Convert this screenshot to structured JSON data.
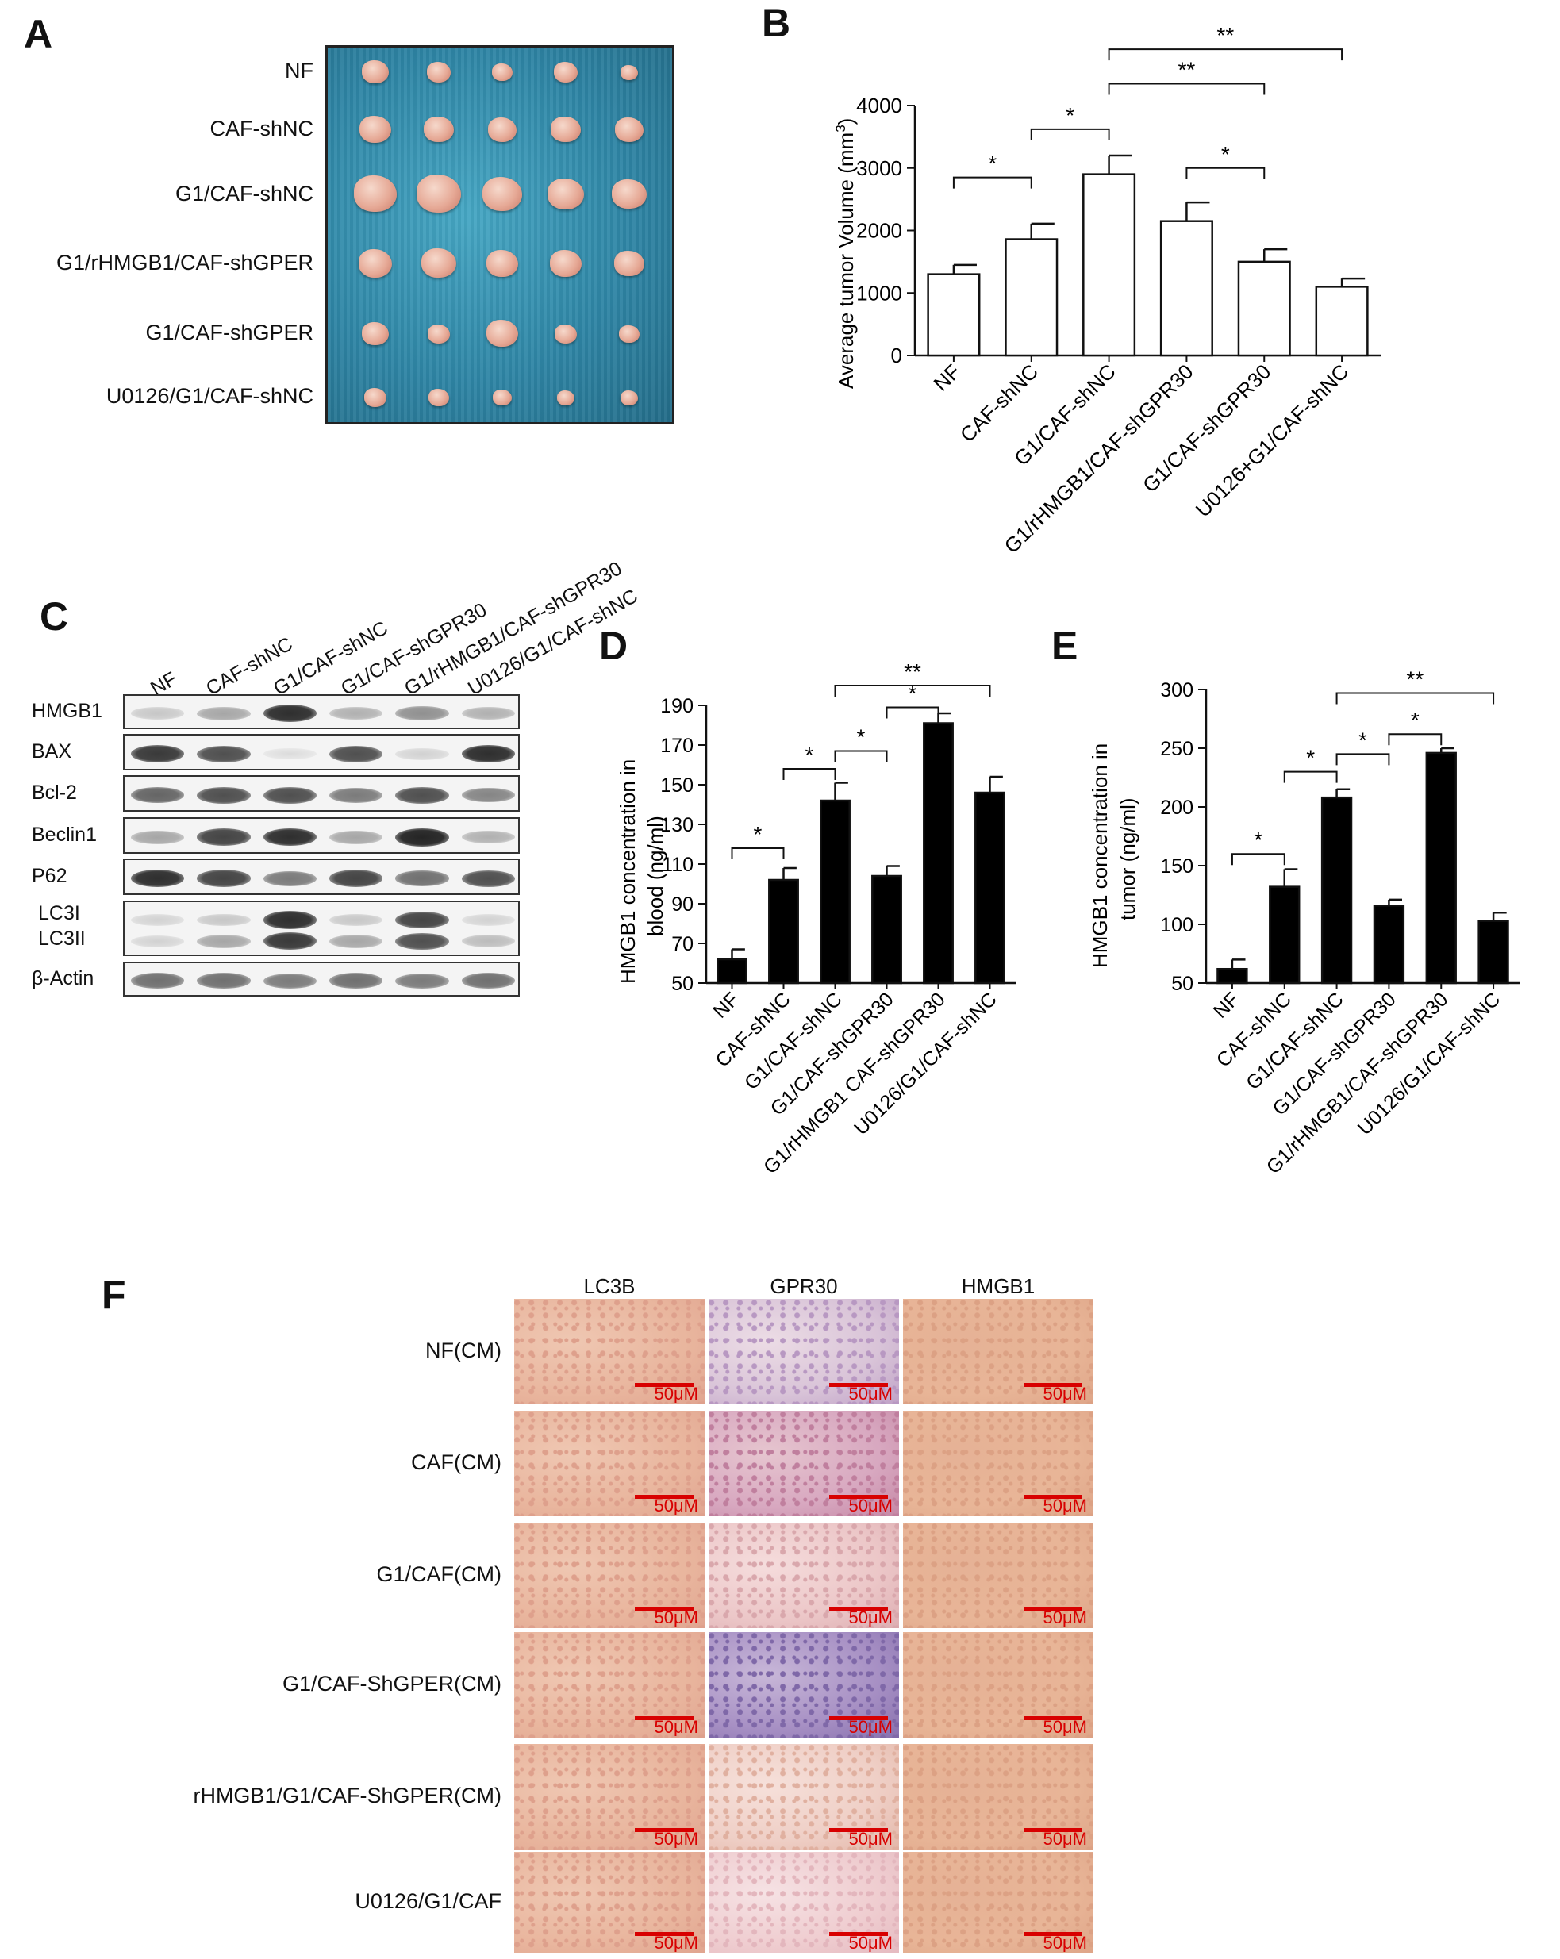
{
  "panels": {
    "A": {
      "letter": "A",
      "rows": [
        "NF",
        "CAF-shNC",
        "G1/CAF-shNC",
        "G1/rHMGB1/CAF-shGPER",
        "G1/CAF-shGPER",
        "U0126/G1/CAF-shNC"
      ]
    },
    "B": {
      "letter": "B"
    },
    "C": {
      "letter": "C",
      "lanes": [
        "NF",
        "CAF-shNC",
        "G1/CAF-shNC",
        "G1/CAF-shGPR30",
        "G1/rHMGB1/CAF-shGPR30",
        "U0126/G1/CAF-shNC"
      ],
      "proteins": [
        "HMGB1",
        "BAX",
        "Bcl-2",
        "Beclin1",
        "P62",
        "LC3I",
        "LC3II",
        "β-Actin"
      ],
      "band_intensity": {
        "HMGB1": [
          0.15,
          0.3,
          0.85,
          0.25,
          0.4,
          0.25
        ],
        "BAX": [
          0.8,
          0.7,
          0.05,
          0.7,
          0.1,
          0.85
        ],
        "Bcl-2": [
          0.6,
          0.7,
          0.7,
          0.5,
          0.7,
          0.45
        ],
        "Beclin1": [
          0.3,
          0.75,
          0.85,
          0.3,
          0.9,
          0.25
        ],
        "P62": [
          0.85,
          0.75,
          0.5,
          0.75,
          0.55,
          0.7
        ],
        "LC3I": [
          0.1,
          0.15,
          0.85,
          0.15,
          0.75,
          0.1
        ],
        "LC3II": [
          0.1,
          0.3,
          0.8,
          0.3,
          0.7,
          0.2
        ],
        "β-Actin": [
          0.55,
          0.55,
          0.5,
          0.55,
          0.5,
          0.55
        ]
      }
    },
    "D": {
      "letter": "D"
    },
    "E": {
      "letter": "E"
    },
    "F": {
      "letter": "F",
      "columns": [
        "LC3B",
        "GPR30",
        "HMGB1"
      ],
      "rows": [
        "NF(CM)",
        "CAF(CM)",
        "G1/CAF(CM)",
        "G1/CAF-ShGPER(CM)",
        "rHMGB1/G1/CAF-ShGPER(CM)",
        "U0126/G1/CAF"
      ],
      "scale_bar": "50μM"
    }
  },
  "chart_data": [
    {
      "panel": "B",
      "type": "bar",
      "categories": [
        "NF",
        "CAF-shNC",
        "G1/CAF-shNC",
        "G1/rHMGB1/CAF-shGPR30",
        "G1/CAF-shGPR30",
        "U0126+G1/CAF-shNC"
      ],
      "values": [
        1300,
        1860,
        2900,
        2150,
        1500,
        1100
      ],
      "errors": [
        150,
        250,
        300,
        300,
        200,
        130
      ],
      "ylabel_main": "Average tumor Volume (mm",
      "ylabel_sup": "3",
      "ylabel_close": ")",
      "ylim": [
        0,
        4000
      ],
      "yticks": [
        0,
        1000,
        2000,
        3000,
        4000
      ],
      "bar_color": "#ffffff",
      "significance": [
        {
          "from": 0,
          "to": 1,
          "y": 2850,
          "label": "*"
        },
        {
          "from": 1,
          "to": 2,
          "y": 3620,
          "label": "*"
        },
        {
          "from": 3,
          "to": 4,
          "y": 3000,
          "label": "*"
        },
        {
          "from": 2,
          "to": 4,
          "y": 4350,
          "label": "**"
        },
        {
          "from": 2,
          "to": 5,
          "y": 4900,
          "label": "**"
        }
      ]
    },
    {
      "panel": "D",
      "type": "bar",
      "categories": [
        "NF",
        "CAF-shNC",
        "G1/CAF-shNC",
        "G1/CAF-shGPR30",
        "G1/rHMGB1 CAF-shGPR30",
        "U0126/G1/CAF-shNC"
      ],
      "values": [
        62,
        102,
        142,
        104,
        181,
        146
      ],
      "errors": [
        5,
        6,
        9,
        5,
        5,
        8
      ],
      "ylabel_line1": "HMGB1  concentration in",
      "ylabel_line2": "blood (ng/ml)",
      "ylim": [
        50,
        190
      ],
      "yticks": [
        50,
        70,
        90,
        110,
        130,
        150,
        170,
        190
      ],
      "bar_color": "#000000",
      "significance": [
        {
          "from": 0,
          "to": 1,
          "y": 118,
          "label": "*"
        },
        {
          "from": 1,
          "to": 2,
          "y": 158,
          "label": "*"
        },
        {
          "from": 2,
          "to": 3,
          "y": 167,
          "label": "*"
        },
        {
          "from": 3,
          "to": 4,
          "y": 189,
          "label": "*"
        },
        {
          "from": 2,
          "to": 5,
          "y": 200,
          "label": "**"
        }
      ]
    },
    {
      "panel": "E",
      "type": "bar",
      "categories": [
        "NF",
        "CAF-shNC",
        "G1/CAF-shNC",
        "G1/CAF-shGPR30",
        "G1/rHMGB1/CAF-shGPR30",
        "U0126/G1/CAF-shNC"
      ],
      "values": [
        62,
        132,
        208,
        116,
        246,
        103
      ],
      "errors": [
        8,
        15,
        7,
        5,
        4,
        7
      ],
      "ylabel_line1": "HMGB1  concentration in",
      "ylabel_line2": "tumor  (ng/ml)",
      "ylim": [
        50,
        300
      ],
      "yticks": [
        50,
        100,
        150,
        200,
        250,
        300
      ],
      "bar_color": "#000000",
      "significance": [
        {
          "from": 0,
          "to": 1,
          "y": 160,
          "label": "*"
        },
        {
          "from": 1,
          "to": 2,
          "y": 230,
          "label": "*"
        },
        {
          "from": 2,
          "to": 3,
          "y": 245,
          "label": "*"
        },
        {
          "from": 3,
          "to": 4,
          "y": 262,
          "label": "*"
        },
        {
          "from": 2,
          "to": 5,
          "y": 297,
          "label": "**"
        }
      ]
    }
  ]
}
